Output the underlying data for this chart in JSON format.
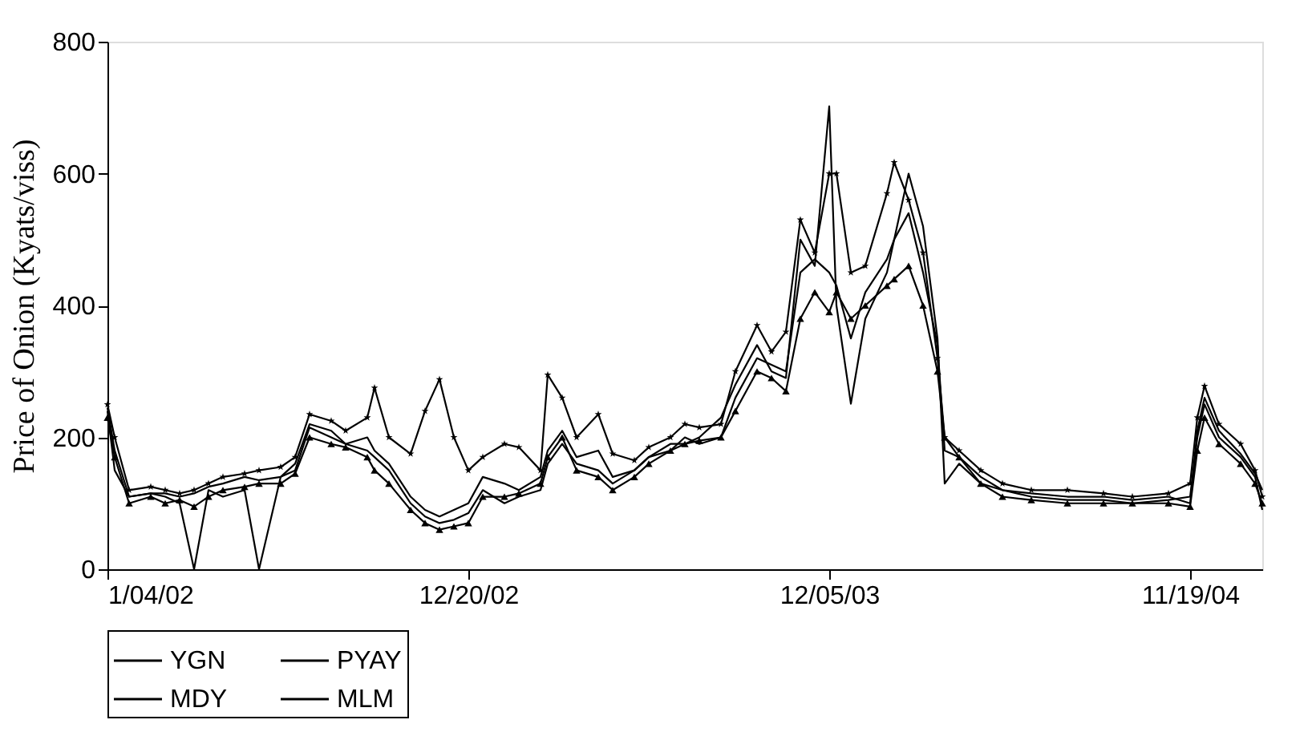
{
  "chart_data": {
    "type": "line",
    "ylabel": "Price of Onion (Kyats/viss)",
    "x": [
      "2002-01-04",
      "2002-01-11",
      "2002-01-25",
      "2002-02-15",
      "2002-03-01",
      "2002-03-15",
      "2002-03-29",
      "2002-04-12",
      "2002-04-26",
      "2002-05-17",
      "2002-05-31",
      "2002-06-21",
      "2002-07-05",
      "2002-07-19",
      "2002-08-09",
      "2002-08-23",
      "2002-09-13",
      "2002-09-20",
      "2002-10-04",
      "2002-10-25",
      "2002-11-08",
      "2002-11-22",
      "2002-12-06",
      "2002-12-20",
      "2003-01-03",
      "2003-01-24",
      "2003-02-07",
      "2003-02-28",
      "2003-03-07",
      "2003-03-21",
      "2003-04-04",
      "2003-04-25",
      "2003-05-09",
      "2003-05-30",
      "2003-06-13",
      "2003-07-04",
      "2003-07-18",
      "2003-08-01",
      "2003-08-22",
      "2003-09-05",
      "2003-09-26",
      "2003-10-10",
      "2003-10-24",
      "2003-11-07",
      "2003-11-21",
      "2003-12-05",
      "2003-12-12",
      "2003-12-26",
      "2004-01-09",
      "2004-01-30",
      "2004-02-06",
      "2004-02-20",
      "2004-03-05",
      "2004-03-19",
      "2004-03-26",
      "2004-04-09",
      "2004-04-30",
      "2004-05-21",
      "2004-06-18",
      "2004-07-23",
      "2004-08-27",
      "2004-09-24",
      "2004-10-29",
      "2004-11-19",
      "2004-11-26",
      "2004-12-03",
      "2004-12-17",
      "2005-01-07",
      "2005-01-21",
      "2005-01-28"
    ],
    "series": [
      {
        "name": "YGN",
        "color": "#000000",
        "marker": "none",
        "values": [
          240,
          150,
          110,
          115,
          110,
          100,
          0,
          120,
          110,
          120,
          0,
          140,
          160,
          220,
          210,
          190,
          200,
          180,
          160,
          110,
          90,
          80,
          90,
          100,
          140,
          130,
          120,
          140,
          180,
          210,
          170,
          180,
          140,
          150,
          170,
          190,
          190,
          200,
          230,
          280,
          340,
          300,
          290,
          500,
          460,
          702,
          400,
          251,
          380,
          450,
          500,
          600,
          520,
          350,
          130,
          160,
          130,
          120,
          110,
          105,
          105,
          100,
          105,
          110,
          200,
          250,
          200,
          170,
          140,
          90
        ]
      },
      {
        "name": "PYAY",
        "color": "#000000",
        "marker": "none",
        "values": [
          245,
          180,
          110,
          115,
          115,
          110,
          115,
          125,
          130,
          140,
          135,
          140,
          150,
          215,
          200,
          190,
          180,
          170,
          150,
          100,
          80,
          70,
          75,
          85,
          120,
          100,
          110,
          120,
          160,
          190,
          160,
          150,
          130,
          150,
          170,
          180,
          200,
          190,
          200,
          260,
          320,
          310,
          300,
          450,
          470,
          450,
          430,
          350,
          420,
          470,
          500,
          540,
          450,
          340,
          180,
          170,
          140,
          120,
          115,
          110,
          110,
          105,
          110,
          100,
          210,
          260,
          210,
          175,
          145,
          120
        ]
      },
      {
        "name": "MDY",
        "color": "#000000",
        "marker": "triangle",
        "values": [
          230,
          170,
          100,
          110,
          100,
          105,
          95,
          110,
          120,
          125,
          130,
          130,
          145,
          200,
          190,
          185,
          170,
          150,
          130,
          90,
          70,
          60,
          65,
          70,
          110,
          110,
          115,
          130,
          170,
          200,
          150,
          140,
          120,
          140,
          160,
          180,
          190,
          195,
          200,
          240,
          300,
          290,
          270,
          380,
          420,
          390,
          420,
          380,
          400,
          430,
          440,
          460,
          400,
          300,
          200,
          170,
          130,
          110,
          105,
          100,
          100,
          100,
          100,
          95,
          180,
          230,
          190,
          160,
          130,
          100
        ]
      },
      {
        "name": "MLM",
        "color": "#000000",
        "marker": "star",
        "values": [
          250,
          200,
          120,
          125,
          120,
          115,
          120,
          130,
          140,
          145,
          150,
          155,
          170,
          235,
          225,
          210,
          230,
          275,
          200,
          175,
          240,
          288,
          200,
          150,
          170,
          190,
          185,
          150,
          295,
          260,
          200,
          235,
          175,
          165,
          185,
          200,
          220,
          215,
          220,
          300,
          370,
          330,
          360,
          530,
          480,
          600,
          600,
          450,
          460,
          570,
          617,
          560,
          480,
          320,
          200,
          180,
          150,
          130,
          120,
          120,
          115,
          110,
          115,
          130,
          230,
          278,
          220,
          190,
          150,
          110
        ]
      }
    ],
    "xlim": [
      "2002-01-04",
      "2005-01-28"
    ],
    "xticks": [
      {
        "value": "2002-01-04",
        "label": "1/04/02"
      },
      {
        "value": "2002-12-20",
        "label": "12/20/02"
      },
      {
        "value": "2003-12-05",
        "label": "12/05/03"
      },
      {
        "value": "2004-11-19",
        "label": "11/19/04"
      }
    ],
    "ylim": [
      0,
      800
    ],
    "yticks": [
      0,
      200,
      400,
      600,
      800
    ],
    "grid": false,
    "legend": "bottom",
    "line_style": "solid"
  }
}
